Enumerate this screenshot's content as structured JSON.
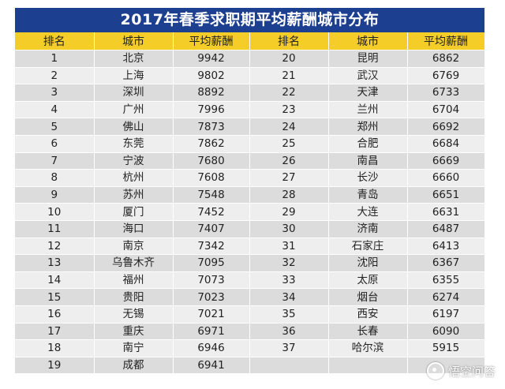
{
  "title": "2017年春季求职期平均薪酬城市分布",
  "headers": [
    "排名",
    "城市",
    "平均薪酬",
    "排名",
    "城市",
    "平均薪酬"
  ],
  "left": [
    {
      "rank": "1",
      "city": "北京",
      "salary": "9942"
    },
    {
      "rank": "2",
      "city": "上海",
      "salary": "9802"
    },
    {
      "rank": "3",
      "city": "深圳",
      "salary": "8892"
    },
    {
      "rank": "4",
      "city": "广州",
      "salary": "7996"
    },
    {
      "rank": "5",
      "city": "佛山",
      "salary": "7873"
    },
    {
      "rank": "6",
      "city": "东莞",
      "salary": "7862"
    },
    {
      "rank": "7",
      "city": "宁波",
      "salary": "7680"
    },
    {
      "rank": "8",
      "city": "杭州",
      "salary": "7608"
    },
    {
      "rank": "9",
      "city": "苏州",
      "salary": "7548"
    },
    {
      "rank": "10",
      "city": "厦门",
      "salary": "7452"
    },
    {
      "rank": "11",
      "city": "海口",
      "salary": "7407"
    },
    {
      "rank": "12",
      "city": "南京",
      "salary": "7342"
    },
    {
      "rank": "13",
      "city": "乌鲁木齐",
      "salary": "7095"
    },
    {
      "rank": "14",
      "city": "福州",
      "salary": "7073"
    },
    {
      "rank": "15",
      "city": "贵阳",
      "salary": "7023"
    },
    {
      "rank": "16",
      "city": "无锡",
      "salary": "7021"
    },
    {
      "rank": "17",
      "city": "重庆",
      "salary": "6971"
    },
    {
      "rank": "18",
      "city": "南宁",
      "salary": "6946"
    },
    {
      "rank": "19",
      "city": "成都",
      "salary": "6941"
    }
  ],
  "right": [
    {
      "rank": "20",
      "city": "昆明",
      "salary": "6862"
    },
    {
      "rank": "21",
      "city": "武汉",
      "salary": "6769"
    },
    {
      "rank": "22",
      "city": "天津",
      "salary": "6733"
    },
    {
      "rank": "23",
      "city": "兰州",
      "salary": "6704"
    },
    {
      "rank": "24",
      "city": "郑州",
      "salary": "6692"
    },
    {
      "rank": "25",
      "city": "合肥",
      "salary": "6684"
    },
    {
      "rank": "26",
      "city": "南昌",
      "salary": "6669"
    },
    {
      "rank": "27",
      "city": "长沙",
      "salary": "6660"
    },
    {
      "rank": "28",
      "city": "青岛",
      "salary": "6651"
    },
    {
      "rank": "29",
      "city": "大连",
      "salary": "6631"
    },
    {
      "rank": "30",
      "city": "济南",
      "salary": "6487"
    },
    {
      "rank": "31",
      "city": "石家庄",
      "salary": "6413"
    },
    {
      "rank": "32",
      "city": "沈阳",
      "salary": "6367"
    },
    {
      "rank": "33",
      "city": "太原",
      "salary": "6355"
    },
    {
      "rank": "34",
      "city": "烟台",
      "salary": "6274"
    },
    {
      "rank": "35",
      "city": "西安",
      "salary": "6197"
    },
    {
      "rank": "36",
      "city": "长春",
      "salary": "6090"
    },
    {
      "rank": "37",
      "city": "哈尔滨",
      "salary": "5915"
    }
  ],
  "watermark": {
    "text": "悟空问答",
    "icon": "wukong-logo-icon"
  },
  "colors": {
    "title_bg": "#1d3f8f",
    "header_bg": "#f5cd28",
    "row_dark": "#dcdcdc",
    "row_light": "#eeeeee"
  }
}
